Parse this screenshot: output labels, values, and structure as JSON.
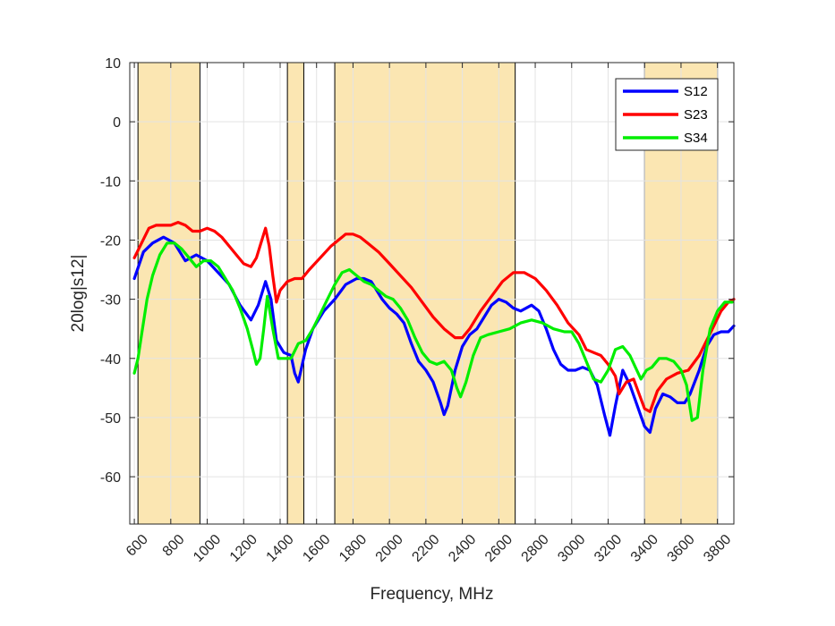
{
  "chart_data": {
    "type": "line",
    "title": "",
    "xlabel": "Frequency, MHz",
    "ylabel": "20log|s12|",
    "xlim": [
      575,
      3890
    ],
    "ylim": [
      -68,
      10
    ],
    "x_ticks": [
      600,
      800,
      1000,
      1200,
      1400,
      1600,
      1800,
      2000,
      2200,
      2400,
      2600,
      2800,
      3000,
      3200,
      3400,
      3600,
      3800
    ],
    "y_ticks": [
      10,
      0,
      -10,
      -20,
      -30,
      -40,
      -50,
      -60
    ],
    "grid": true,
    "legend_position": "top-right",
    "shaded_bands": [
      [
        620,
        960
      ],
      [
        1440,
        1530
      ],
      [
        1700,
        2690
      ],
      [
        3400,
        3800
      ]
    ],
    "colors": {
      "band_fill": "#fbe6b2",
      "band_edge": "#000000",
      "grid": "#e3e3e3"
    },
    "series": [
      {
        "name": "S12",
        "color": "#0000ff",
        "x": [
          600,
          650,
          700,
          760,
          820,
          880,
          940,
          1000,
          1060,
          1120,
          1180,
          1240,
          1280,
          1320,
          1350,
          1380,
          1420,
          1460,
          1480,
          1500,
          1540,
          1580,
          1640,
          1700,
          1760,
          1820,
          1860,
          1900,
          1960,
          2000,
          2040,
          2080,
          2120,
          2160,
          2200,
          2240,
          2280,
          2300,
          2320,
          2360,
          2400,
          2440,
          2480,
          2520,
          2560,
          2600,
          2640,
          2680,
          2720,
          2780,
          2820,
          2860,
          2900,
          2940,
          2980,
          3020,
          3060,
          3100,
          3140,
          3180,
          3210,
          3240,
          3280,
          3320,
          3360,
          3400,
          3430,
          3460,
          3500,
          3540,
          3580,
          3620,
          3650,
          3700,
          3740,
          3780,
          3820,
          3860,
          3890
        ],
        "y": [
          -26.5,
          -22,
          -20.5,
          -19.5,
          -20.5,
          -23.5,
          -22.5,
          -23.5,
          -25.5,
          -27.5,
          -31,
          -33.5,
          -31,
          -27,
          -30,
          -37,
          -39,
          -39.5,
          -42.5,
          -44,
          -38.5,
          -35,
          -32,
          -30,
          -27.5,
          -26.5,
          -26.5,
          -27,
          -30,
          -31.5,
          -32.5,
          -34,
          -37.5,
          -40.5,
          -42,
          -44,
          -47.5,
          -49.5,
          -48,
          -42,
          -38,
          -36,
          -35,
          -33,
          -31,
          -30,
          -30.5,
          -31.5,
          -32,
          -31,
          -32,
          -35,
          -38.5,
          -41,
          -42,
          -42,
          -41.5,
          -42,
          -44.5,
          -49.5,
          -53,
          -48,
          -42,
          -44.5,
          -48,
          -51.5,
          -52.5,
          -48.5,
          -46,
          -46.5,
          -47.5,
          -47.5,
          -46,
          -42,
          -38,
          -36,
          -35.5,
          -35.5,
          -34.5
        ]
      },
      {
        "name": "S23",
        "color": "#ff0000",
        "x": [
          600,
          640,
          680,
          720,
          760,
          800,
          840,
          880,
          920,
          960,
          1000,
          1040,
          1080,
          1120,
          1160,
          1200,
          1240,
          1270,
          1300,
          1320,
          1340,
          1360,
          1380,
          1400,
          1440,
          1480,
          1520,
          1560,
          1620,
          1680,
          1720,
          1760,
          1800,
          1840,
          1880,
          1940,
          2000,
          2060,
          2120,
          2180,
          2240,
          2300,
          2360,
          2400,
          2440,
          2500,
          2560,
          2620,
          2680,
          2740,
          2800,
          2860,
          2920,
          2980,
          3040,
          3080,
          3120,
          3160,
          3200,
          3240,
          3260,
          3300,
          3340,
          3370,
          3400,
          3430,
          3470,
          3520,
          3580,
          3640,
          3700,
          3740,
          3780,
          3820,
          3860,
          3890
        ],
        "y": [
          -23,
          -20.5,
          -18,
          -17.5,
          -17.5,
          -17.5,
          -17,
          -17.5,
          -18.5,
          -18.5,
          -18,
          -18.5,
          -19.5,
          -21,
          -22.5,
          -24,
          -24.5,
          -23,
          -20,
          -18,
          -21,
          -26,
          -30.5,
          -28.5,
          -27,
          -26.5,
          -26.5,
          -25,
          -23,
          -21,
          -20,
          -19,
          -19,
          -19.5,
          -20.5,
          -22,
          -24,
          -26,
          -28,
          -30.5,
          -33,
          -35,
          -36.5,
          -36.5,
          -35,
          -32,
          -29.5,
          -27,
          -25.5,
          -25.5,
          -26.5,
          -28.5,
          -31,
          -34,
          -36,
          -38.5,
          -39,
          -39.5,
          -41,
          -43,
          -46,
          -44,
          -43.5,
          -46,
          -48.5,
          -49,
          -45.5,
          -43.5,
          -42.5,
          -42,
          -39.5,
          -37,
          -34.5,
          -32,
          -30.5,
          -30
        ]
      },
      {
        "name": "S34",
        "color": "#00ee00",
        "x": [
          600,
          620,
          640,
          670,
          700,
          740,
          780,
          820,
          860,
          900,
          940,
          980,
          1020,
          1060,
          1100,
          1140,
          1180,
          1220,
          1250,
          1270,
          1290,
          1310,
          1330,
          1360,
          1390,
          1420,
          1460,
          1500,
          1540,
          1580,
          1620,
          1660,
          1700,
          1740,
          1780,
          1820,
          1860,
          1900,
          1940,
          1980,
          2020,
          2060,
          2100,
          2140,
          2180,
          2220,
          2260,
          2300,
          2340,
          2370,
          2390,
          2420,
          2460,
          2500,
          2540,
          2600,
          2660,
          2720,
          2780,
          2840,
          2900,
          2960,
          3000,
          3040,
          3080,
          3120,
          3160,
          3200,
          3240,
          3280,
          3320,
          3350,
          3380,
          3410,
          3440,
          3480,
          3520,
          3560,
          3600,
          3630,
          3660,
          3690,
          3720,
          3760,
          3800,
          3840,
          3880
        ],
        "y": [
          -42.5,
          -40,
          -36,
          -30,
          -26,
          -22.5,
          -20.5,
          -20.5,
          -21.5,
          -23,
          -24.5,
          -23.5,
          -23.5,
          -24.5,
          -26.5,
          -28.5,
          -31.5,
          -35,
          -38.5,
          -41,
          -40,
          -35,
          -29.5,
          -35,
          -40,
          -40,
          -40,
          -37.5,
          -37,
          -35,
          -32.5,
          -30,
          -27.5,
          -25.5,
          -25,
          -26,
          -27,
          -27.5,
          -28.5,
          -29.5,
          -30,
          -31.5,
          -33.5,
          -36.5,
          -39,
          -40.5,
          -41,
          -40.5,
          -42,
          -45,
          -46.5,
          -44,
          -39.5,
          -36.5,
          -36,
          -35.5,
          -35,
          -34,
          -33.5,
          -34,
          -35,
          -35.5,
          -35.5,
          -37.5,
          -40.5,
          -43.5,
          -44,
          -42,
          -38.5,
          -38,
          -39.5,
          -41.5,
          -43.5,
          -42,
          -41.5,
          -40,
          -40,
          -40.5,
          -42,
          -44.5,
          -50.5,
          -50,
          -42,
          -35,
          -32,
          -30.5,
          -30.5
        ]
      }
    ]
  }
}
